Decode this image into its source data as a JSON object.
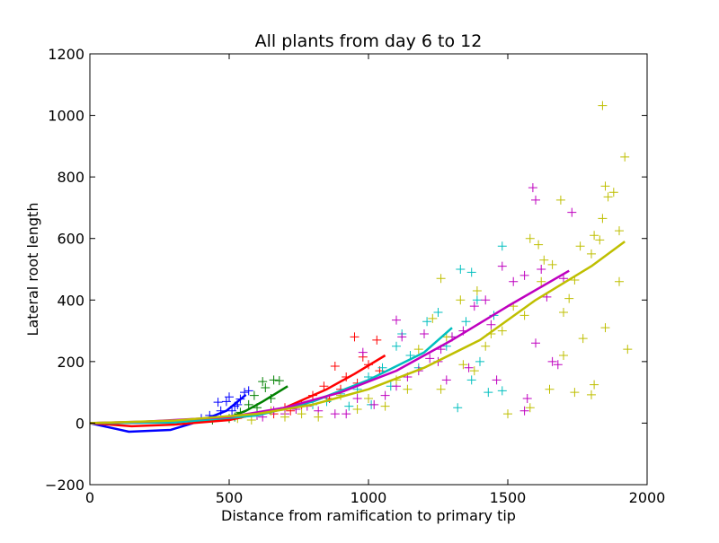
{
  "chart_data": {
    "type": "line",
    "title": "All plants from day 6 to 12",
    "xlabel": "Distance from ramification to primary tip",
    "ylabel": "Lateral root length",
    "xlim": [
      0,
      2000
    ],
    "ylim": [
      -200,
      1200
    ],
    "xticks": [
      "0",
      "500",
      "1000",
      "1500",
      "2000"
    ],
    "yticks": [
      "−200",
      "0",
      "200",
      "400",
      "600",
      "800",
      "1000",
      "1200"
    ],
    "grid": false,
    "markers": "+",
    "series": [
      {
        "color": "#0000ff",
        "line": [
          [
            0,
            0
          ],
          [
            140,
            -28
          ],
          [
            290,
            -22
          ],
          [
            400,
            8
          ],
          [
            490,
            40
          ],
          [
            560,
            92
          ]
        ],
        "points": [
          [
            460,
            68
          ],
          [
            490,
            70
          ],
          [
            500,
            85
          ],
          [
            520,
            55
          ],
          [
            540,
            78
          ],
          [
            555,
            100
          ],
          [
            570,
            105
          ],
          [
            470,
            40
          ],
          [
            430,
            25
          ],
          [
            510,
            40
          ],
          [
            400,
            15
          ],
          [
            530,
            60
          ]
        ]
      },
      {
        "color": "#008000",
        "line": [
          [
            0,
            0
          ],
          [
            300,
            5
          ],
          [
            480,
            12
          ],
          [
            560,
            40
          ],
          [
            620,
            70
          ],
          [
            710,
            120
          ]
        ],
        "points": [
          [
            620,
            135
          ],
          [
            660,
            140
          ],
          [
            680,
            138
          ],
          [
            590,
            90
          ],
          [
            630,
            115
          ],
          [
            570,
            60
          ],
          [
            540,
            35
          ],
          [
            600,
            50
          ],
          [
            520,
            20
          ],
          [
            650,
            80
          ],
          [
            500,
            15
          ],
          [
            440,
            10
          ]
        ]
      },
      {
        "color": "#ff0000",
        "line": [
          [
            0,
            0
          ],
          [
            150,
            -10
          ],
          [
            300,
            -5
          ],
          [
            500,
            10
          ],
          [
            700,
            50
          ],
          [
            850,
            110
          ],
          [
            950,
            160
          ],
          [
            1060,
            220
          ]
        ],
        "points": [
          [
            950,
            280
          ],
          [
            1030,
            270
          ],
          [
            880,
            185
          ],
          [
            920,
            150
          ],
          [
            980,
            215
          ],
          [
            840,
            120
          ],
          [
            800,
            90
          ],
          [
            760,
            60
          ],
          [
            700,
            50
          ],
          [
            1000,
            190
          ],
          [
            900,
            110
          ],
          [
            860,
            80
          ],
          [
            720,
            40
          ],
          [
            660,
            30
          ],
          [
            1040,
            170
          ],
          [
            960,
            130
          ]
        ]
      },
      {
        "color": "#00bfbf",
        "line": [
          [
            0,
            0
          ],
          [
            300,
            2
          ],
          [
            600,
            25
          ],
          [
            800,
            70
          ],
          [
            1000,
            140
          ],
          [
            1200,
            230
          ],
          [
            1300,
            310
          ]
        ],
        "points": [
          [
            1330,
            500
          ],
          [
            1370,
            490
          ],
          [
            1480,
            575
          ],
          [
            1390,
            400
          ],
          [
            1250,
            360
          ],
          [
            1210,
            330
          ],
          [
            1100,
            250
          ],
          [
            1120,
            290
          ],
          [
            1150,
            220
          ],
          [
            1050,
            180
          ],
          [
            1000,
            150
          ],
          [
            960,
            110
          ],
          [
            900,
            95
          ],
          [
            850,
            70
          ],
          [
            800,
            60
          ],
          [
            1320,
            50
          ],
          [
            1370,
            140
          ],
          [
            1430,
            100
          ],
          [
            1480,
            105
          ],
          [
            1400,
            200
          ],
          [
            1280,
            250
          ],
          [
            1180,
            180
          ],
          [
            1080,
            120
          ],
          [
            1010,
            60
          ],
          [
            930,
            55
          ],
          [
            1350,
            330
          ],
          [
            1450,
            350
          ],
          [
            1300,
            280
          ]
        ]
      },
      {
        "color": "#bf00bf",
        "line": [
          [
            0,
            0
          ],
          [
            200,
            5
          ],
          [
            500,
            20
          ],
          [
            700,
            50
          ],
          [
            900,
            100
          ],
          [
            1100,
            170
          ],
          [
            1300,
            270
          ],
          [
            1500,
            380
          ],
          [
            1720,
            495
          ]
        ],
        "points": [
          [
            1590,
            765
          ],
          [
            1600,
            725
          ],
          [
            1730,
            685
          ],
          [
            1620,
            500
          ],
          [
            1560,
            480
          ],
          [
            1520,
            460
          ],
          [
            1480,
            510
          ],
          [
            1420,
            400
          ],
          [
            1380,
            380
          ],
          [
            1340,
            300
          ],
          [
            1300,
            280
          ],
          [
            1260,
            240
          ],
          [
            1220,
            210
          ],
          [
            1180,
            170
          ],
          [
            1140,
            150
          ],
          [
            1100,
            120
          ],
          [
            1060,
            90
          ],
          [
            1020,
            60
          ],
          [
            980,
            230
          ],
          [
            960,
            80
          ],
          [
            920,
            30
          ],
          [
            880,
            30
          ],
          [
            820,
            40
          ],
          [
            780,
            55
          ],
          [
            740,
            45
          ],
          [
            700,
            30
          ],
          [
            660,
            40
          ],
          [
            620,
            20
          ],
          [
            600,
            25
          ],
          [
            1460,
            140
          ],
          [
            1560,
            40
          ],
          [
            1570,
            80
          ],
          [
            1600,
            260
          ],
          [
            1660,
            200
          ],
          [
            1680,
            190
          ],
          [
            1640,
            410
          ],
          [
            1700,
            470
          ],
          [
            1280,
            140
          ],
          [
            1250,
            200
          ],
          [
            1200,
            290
          ],
          [
            1120,
            280
          ],
          [
            1100,
            335
          ],
          [
            1360,
            180
          ],
          [
            1440,
            320
          ]
        ]
      },
      {
        "color": "#bfbf00",
        "line": [
          [
            0,
            0
          ],
          [
            300,
            8
          ],
          [
            600,
            30
          ],
          [
            800,
            60
          ],
          [
            1000,
            110
          ],
          [
            1200,
            180
          ],
          [
            1400,
            270
          ],
          [
            1600,
            400
          ],
          [
            1800,
            510
          ],
          [
            1920,
            590
          ]
        ],
        "points": [
          [
            1840,
            1032
          ],
          [
            1920,
            865
          ],
          [
            1850,
            770
          ],
          [
            1880,
            750
          ],
          [
            1860,
            735
          ],
          [
            1690,
            725
          ],
          [
            1840,
            665
          ],
          [
            1810,
            610
          ],
          [
            1830,
            595
          ],
          [
            1580,
            600
          ],
          [
            1610,
            580
          ],
          [
            1900,
            625
          ],
          [
            1660,
            515
          ],
          [
            1630,
            530
          ],
          [
            1760,
            575
          ],
          [
            1800,
            550
          ],
          [
            1740,
            465
          ],
          [
            1900,
            460
          ],
          [
            1720,
            405
          ],
          [
            1850,
            310
          ],
          [
            1770,
            275
          ],
          [
            1930,
            240
          ],
          [
            1740,
            100
          ],
          [
            1800,
            92
          ],
          [
            1580,
            50
          ],
          [
            1500,
            30
          ],
          [
            1650,
            110
          ],
          [
            1700,
            220
          ],
          [
            1810,
            125
          ],
          [
            1480,
            300
          ],
          [
            1440,
            290
          ],
          [
            1390,
            430
          ],
          [
            1330,
            400
          ],
          [
            1260,
            470
          ],
          [
            1280,
            280
          ],
          [
            1230,
            340
          ],
          [
            1180,
            240
          ],
          [
            1140,
            110
          ],
          [
            1100,
            140
          ],
          [
            1060,
            55
          ],
          [
            1000,
            80
          ],
          [
            960,
            45
          ],
          [
            900,
            90
          ],
          [
            820,
            20
          ],
          [
            760,
            30
          ],
          [
            700,
            20
          ],
          [
            650,
            40
          ],
          [
            580,
            10
          ],
          [
            530,
            15
          ],
          [
            1520,
            380
          ],
          [
            1560,
            350
          ],
          [
            1620,
            460
          ],
          [
            1700,
            360
          ],
          [
            1340,
            190
          ],
          [
            1260,
            110
          ],
          [
            1380,
            170
          ],
          [
            1420,
            250
          ]
        ]
      }
    ]
  }
}
